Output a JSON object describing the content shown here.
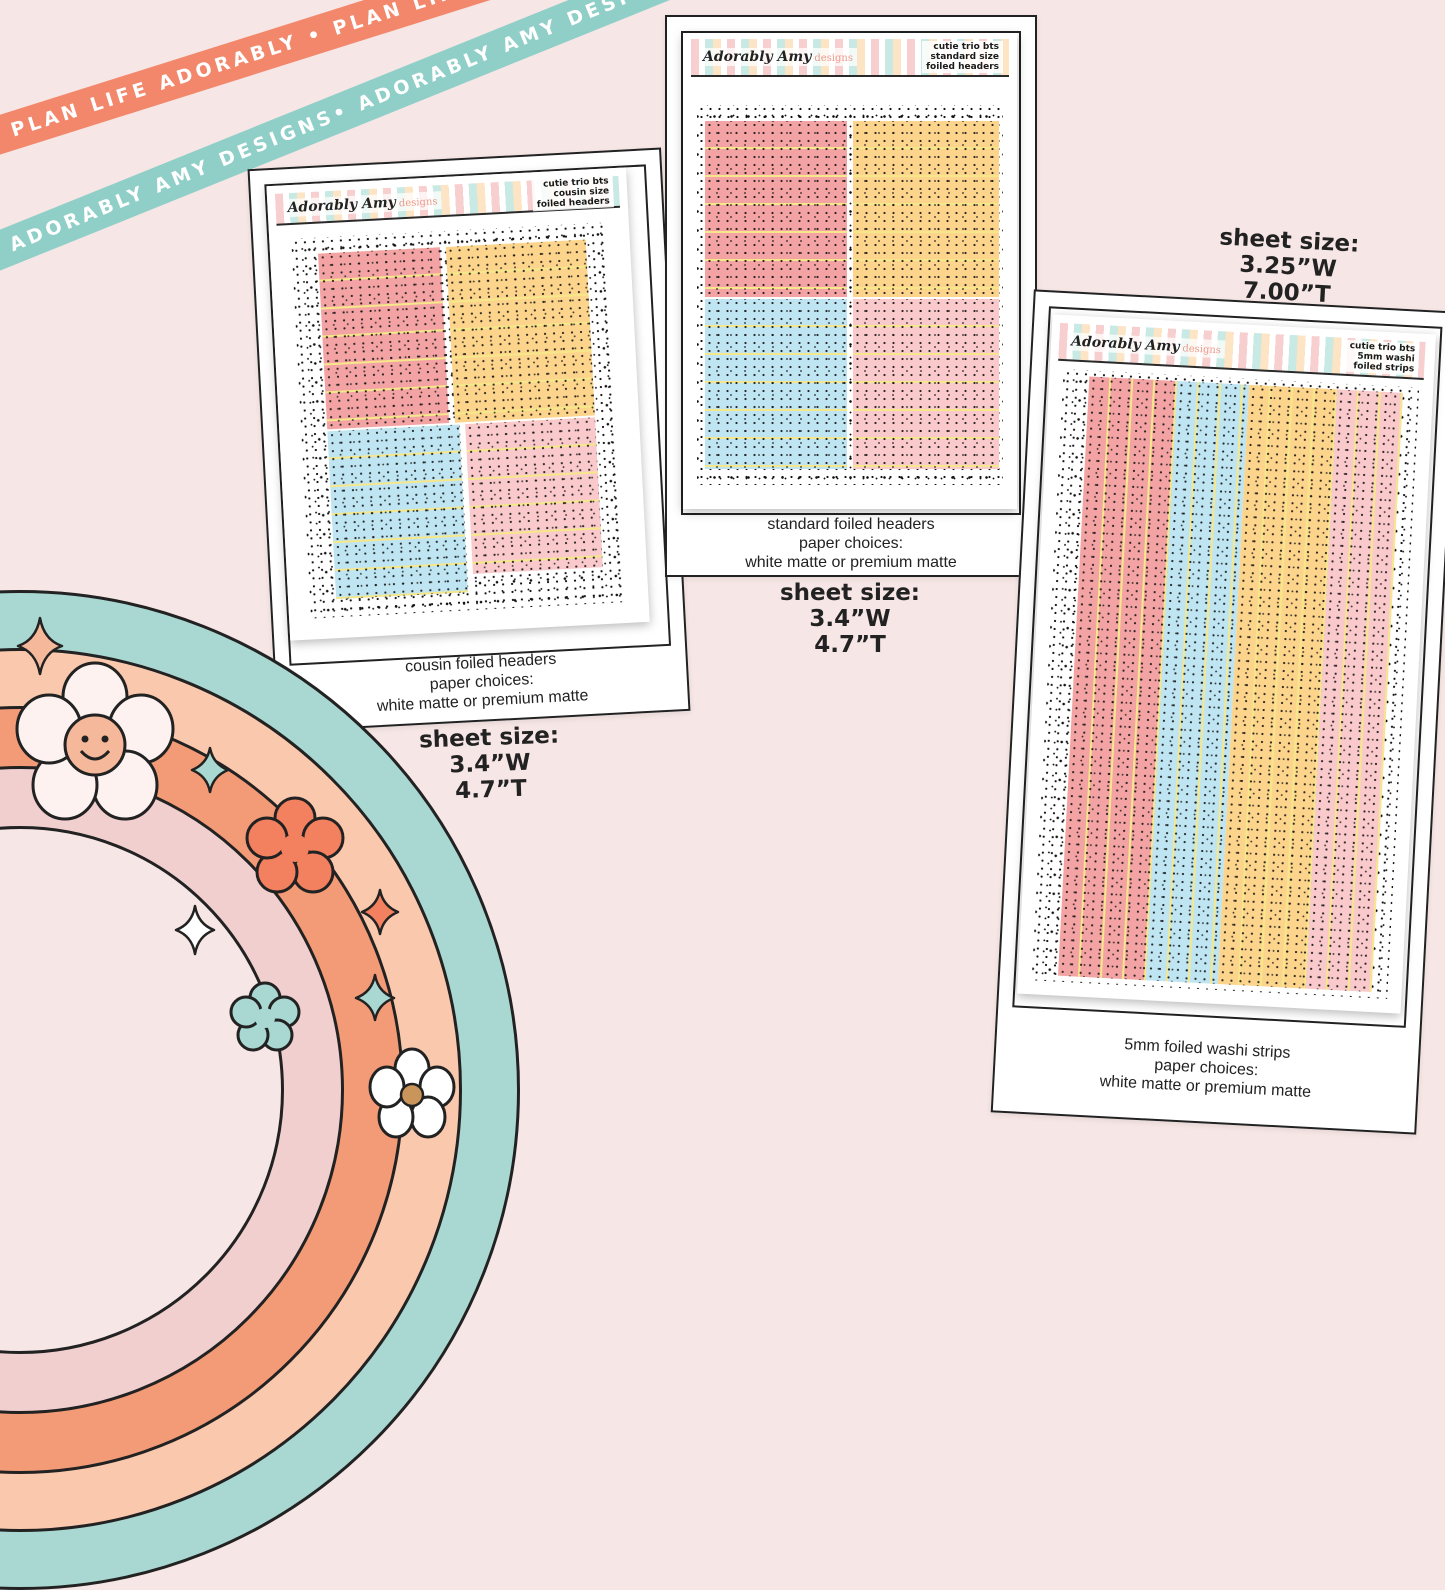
{
  "ribbons": {
    "coral": "PLAN LIFE ADORABLY • PLAN LIFE ADORABLY • PLAN LIFE ADORABLY • PLAN LIFE ADORABLY",
    "teal": "ADORABLY AMY DESIGNS• ADORABLY AMY DESIGNS• ADORABLY AMY DESIGNS• ADORABLY AMY DESIGNS"
  },
  "brand": {
    "name": "Adorably Amy",
    "suffix": "designs"
  },
  "products": [
    {
      "sheet_label": [
        "cutie trio bts",
        "cousin size",
        "foiled headers"
      ],
      "caption": [
        "cousin foiled headers",
        "paper choices:",
        "white matte or premium matte"
      ],
      "size": [
        "sheet size:",
        "3.4”W",
        "4.7”T"
      ]
    },
    {
      "sheet_label": [
        "cutie trio bts",
        "standard size",
        "foiled headers"
      ],
      "caption": [
        "standard foiled headers",
        "paper choices:",
        "white matte or premium matte"
      ],
      "size": [
        "sheet size:",
        "3.4”W",
        "4.7”T"
      ]
    },
    {
      "sheet_label": [
        "cutie trio bts",
        "5mm washi",
        "foiled strips"
      ],
      "caption": [
        "5mm foiled washi strips",
        "paper choices:",
        "white matte or premium matte"
      ],
      "size": [
        "sheet size:",
        "3.25”W",
        "7.00”T"
      ]
    }
  ],
  "colors": {
    "background": "#f6e6e5",
    "pink": "#f3a3a3",
    "yellow": "#fdd48c",
    "blue": "#bfe5f2",
    "light_pink": "#f9c9cb",
    "coral_ribbon": "#f2876b",
    "teal_ribbon": "#8fcfc7"
  },
  "icons": [
    "smiley-flower-icon",
    "flower-icon",
    "sparkle-icon"
  ]
}
